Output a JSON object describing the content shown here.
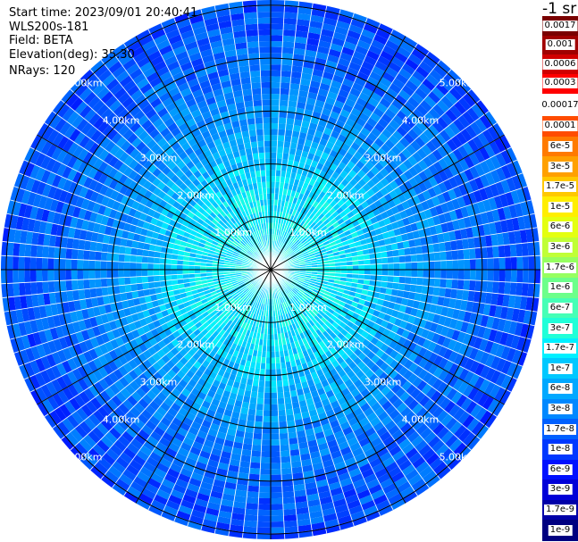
{
  "header": {
    "start_time": "Start time: 2023/09/01 20:40:41",
    "instrument": "WLS200s-181",
    "field": "Field: BETA",
    "elevation": "Elevation(deg): 35.30",
    "nrays": "NRays: 120"
  },
  "chart_data": {
    "type": "heatmap",
    "projection": "polar-ppi",
    "field": "BETA",
    "elevation_deg": 35.3,
    "n_rays": 120,
    "range_rings_km": [
      1.0,
      2.0,
      3.0,
      4.0,
      5.0
    ],
    "ring_labels": [
      "1.00km",
      "2.00km",
      "3.00km",
      "4.00km",
      "5.00km"
    ],
    "max_range_km": 5.1,
    "spoke_interval_deg": 30,
    "value_profile": [
      {
        "range_km": 0.2,
        "value": 1.7e-07
      },
      {
        "range_km": 1.0,
        "value": 1.7e-07
      },
      {
        "range_km": 1.8,
        "value": 1.2e-07
      },
      {
        "range_km": 2.6,
        "value": 5e-08
      },
      {
        "range_km": 3.5,
        "value": 2.5e-08
      },
      {
        "range_km": 4.5,
        "value": 1.5e-08
      },
      {
        "range_km": 5.1,
        "value": 1.3e-08
      }
    ]
  },
  "colorbar": {
    "unit": "-1 sr",
    "top_labels": [
      "0.0017",
      "0.001",
      "0.0006",
      "0.0003"
    ],
    "top_colors": [
      "#7a0000",
      "#a00000",
      "#d00000",
      "#ff0000"
    ],
    "mid_label": "0.00017",
    "bottom_labels": [
      "0.0001",
      "6e-5",
      "3e-5",
      "1.7e-5",
      "1e-5",
      "6e-6",
      "3e-6",
      "1.7e-6",
      "1e-6",
      "6e-7",
      "3e-7",
      "1.7e-7",
      "1e-7",
      "6e-8",
      "3e-8",
      "1.7e-8",
      "1e-8",
      "6e-9",
      "3e-9",
      "1.7e-9",
      "1e-9"
    ],
    "bottom_colors": [
      "#ff4c00",
      "#ff7a00",
      "#ffa000",
      "#ffc800",
      "#ffee00",
      "#e4ff10",
      "#c0ff36",
      "#96ff60",
      "#6cff8a",
      "#46ffb6",
      "#20ffd8",
      "#00f0ff",
      "#00c8ff",
      "#00a8ff",
      "#0088ff",
      "#0060ff",
      "#0038ff",
      "#0010ff",
      "#0000d8",
      "#0000a8",
      "#000080"
    ]
  }
}
